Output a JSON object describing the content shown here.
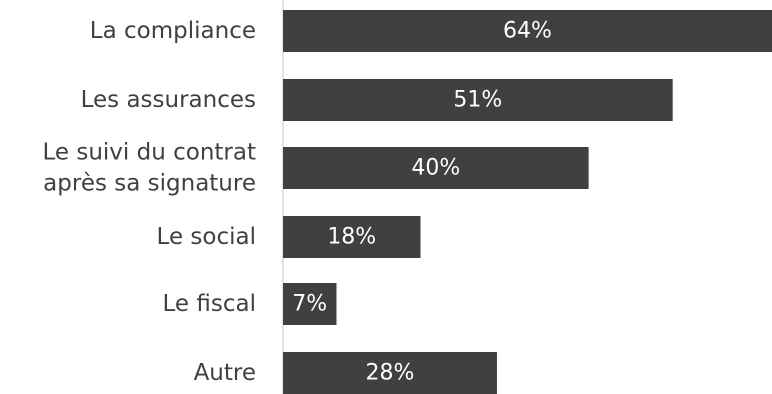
{
  "chart_data": {
    "type": "bar",
    "orientation": "horizontal",
    "categories": [
      [
        "La compliance"
      ],
      [
        "Les assurances"
      ],
      [
        "Le suivi du contrat",
        "après sa signature"
      ],
      [
        "Le social"
      ],
      [
        "Le fiscal"
      ],
      [
        "Autre"
      ]
    ],
    "values": [
      64,
      51,
      40,
      18,
      7,
      28
    ],
    "data_labels": [
      "64%",
      "51%",
      "40%",
      "18%",
      "7%",
      "28%"
    ],
    "xlim": [
      0,
      64
    ],
    "grid": false,
    "legend": "none",
    "colors": {
      "bar": "#404040",
      "axis": "#d9d9d9",
      "label": "#404040",
      "data_label": "#ffffff"
    }
  }
}
